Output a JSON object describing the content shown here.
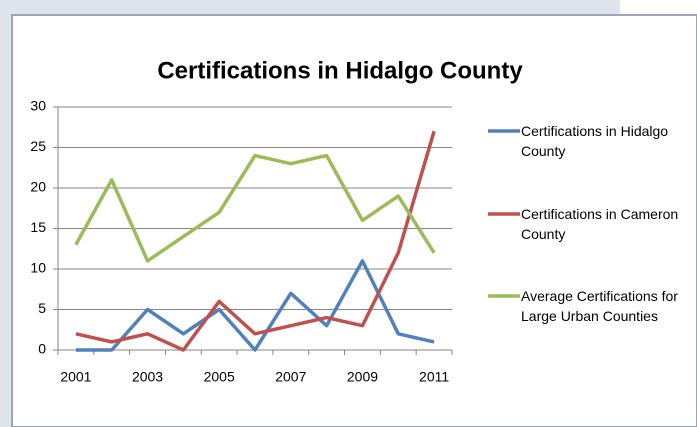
{
  "chart_data": {
    "type": "line",
    "title": "Certifications in Hidalgo County",
    "categories": [
      "2001",
      null,
      "2003",
      null,
      "2005",
      null,
      "2007",
      null,
      "2009",
      null,
      "2011"
    ],
    "series": [
      {
        "name": "Certifications in Hidalgo County",
        "color": "#4f81bd",
        "values": [
          0,
          0,
          5,
          2,
          5,
          0,
          7,
          3,
          11,
          2,
          1
        ]
      },
      {
        "name": "Certifications in Cameron County",
        "color": "#c0504d",
        "values": [
          2,
          1,
          2,
          0,
          6,
          2,
          3,
          4,
          3,
          12,
          27
        ]
      },
      {
        "name": "Average Certifications for Large Urban Counties",
        "color": "#9bbb59",
        "values": [
          13,
          21,
          11,
          14,
          17,
          24,
          23,
          24,
          16,
          19,
          12
        ]
      }
    ],
    "ylim": [
      0,
      30
    ],
    "yticks": [
      0,
      5,
      10,
      15,
      20,
      25,
      30
    ],
    "grid": true,
    "legend": "right"
  }
}
